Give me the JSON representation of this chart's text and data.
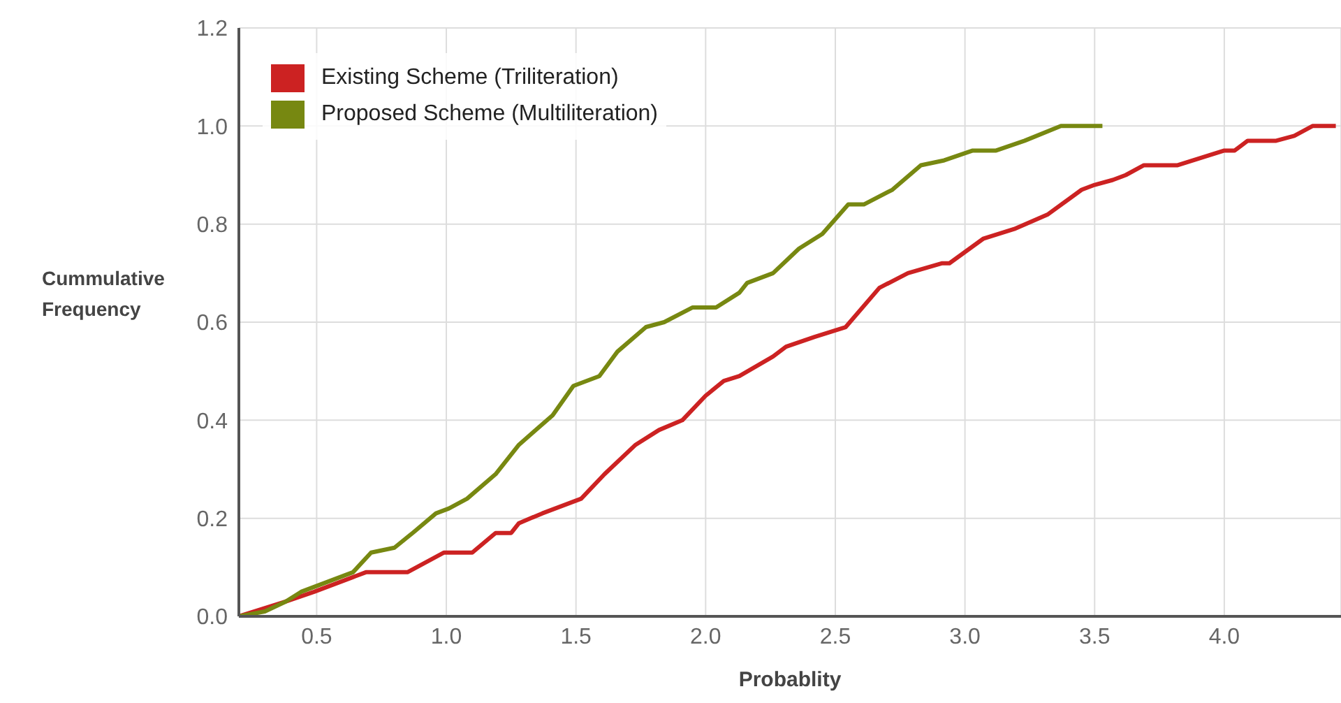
{
  "chart_data": {
    "type": "line",
    "xlabel": "Probablity",
    "ylabel": "Cummulative Frequency",
    "xlim": [
      0.2,
      4.45
    ],
    "ylim": [
      0,
      1.2
    ],
    "xticks": [
      0.5,
      {
        "value": 1,
        "label": "1.0"
      },
      1.5,
      {
        "value": 2,
        "label": "2.0"
      },
      2.5,
      {
        "value": 3,
        "label": "3.0"
      },
      3.5,
      {
        "value": 4,
        "label": "4.0"
      }
    ],
    "yticks": [
      {
        "value": 0,
        "label": "0.0"
      },
      0.2,
      0.4,
      0.6,
      0.8,
      {
        "value": 1,
        "label": "1.0"
      },
      {
        "value": 1.2,
        "label": "1.2"
      }
    ],
    "grid": true,
    "legend": "top left",
    "marker": "none",
    "line_style": "solid",
    "series": [
      {
        "name": "Existing Scheme (Triliteration)",
        "color": "#cc2222",
        "x": [
          0.2,
          0.38,
          0.49,
          0.64,
          0.69,
          0.85,
          0.99,
          1.1,
          1.19,
          1.25,
          1.28,
          1.37,
          1.52,
          1.61,
          1.73,
          1.82,
          1.91,
          2.0,
          2.07,
          2.13,
          2.26,
          2.31,
          2.42,
          2.54,
          2.67,
          2.78,
          2.91,
          2.94,
          3.07,
          3.19,
          3.32,
          3.45,
          3.5,
          3.57,
          3.62,
          3.69,
          3.82,
          4.0,
          4.04,
          4.09,
          4.2,
          4.27,
          4.34,
          4.43
        ],
        "values": [
          0,
          0.03,
          0.05,
          0.08,
          0.09,
          0.09,
          0.13,
          0.13,
          0.17,
          0.17,
          0.19,
          0.21,
          0.24,
          0.29,
          0.35,
          0.38,
          0.4,
          0.45,
          0.48,
          0.49,
          0.53,
          0.55,
          0.57,
          0.59,
          0.67,
          0.7,
          0.72,
          0.72,
          0.77,
          0.79,
          0.82,
          0.87,
          0.88,
          0.89,
          0.9,
          0.92,
          0.92,
          0.95,
          0.95,
          0.97,
          0.97,
          0.98,
          1.0,
          1.0
        ]
      },
      {
        "name": "Proposed Scheme (Multiliteration)",
        "color": "#778811",
        "x": [
          0.2,
          0.3,
          0.38,
          0.44,
          0.54,
          0.64,
          0.71,
          0.8,
          0.87,
          0.96,
          1.01,
          1.08,
          1.19,
          1.28,
          1.41,
          1.49,
          1.59,
          1.66,
          1.77,
          1.84,
          1.95,
          2.04,
          2.13,
          2.16,
          2.26,
          2.36,
          2.45,
          2.55,
          2.61,
          2.72,
          2.83,
          2.92,
          3.03,
          3.12,
          3.23,
          3.37,
          3.53
        ],
        "values": [
          0,
          0.01,
          0.03,
          0.05,
          0.07,
          0.09,
          0.13,
          0.14,
          0.17,
          0.21,
          0.22,
          0.24,
          0.29,
          0.35,
          0.41,
          0.47,
          0.49,
          0.54,
          0.59,
          0.6,
          0.63,
          0.63,
          0.66,
          0.68,
          0.7,
          0.75,
          0.78,
          0.84,
          0.84,
          0.87,
          0.92,
          0.93,
          0.95,
          0.95,
          0.97,
          1.0,
          1.0
        ]
      }
    ]
  }
}
